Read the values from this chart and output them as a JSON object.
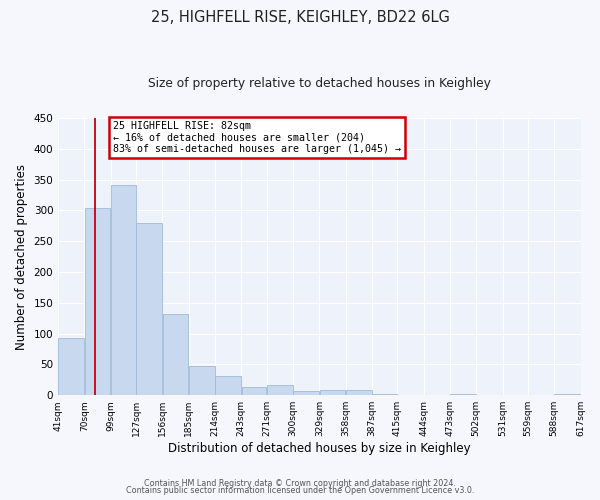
{
  "title": "25, HIGHFELL RISE, KEIGHLEY, BD22 6LG",
  "subtitle": "Size of property relative to detached houses in Keighley",
  "xlabel": "Distribution of detached houses by size in Keighley",
  "ylabel": "Number of detached properties",
  "bar_color": "#c8d9ef",
  "bar_edge_color": "#a0bcd8",
  "background_color": "#eef2fa",
  "grid_color": "#ffffff",
  "bins": [
    41,
    70,
    99,
    127,
    156,
    185,
    214,
    243,
    271,
    300,
    329,
    358,
    387,
    415,
    444,
    473,
    502,
    531,
    559,
    588,
    617
  ],
  "values": [
    93,
    304,
    341,
    279,
    132,
    47,
    31,
    14,
    16,
    7,
    8,
    8,
    2,
    0,
    0,
    2,
    0,
    0,
    0,
    2
  ],
  "tick_labels": [
    "41sqm",
    "70sqm",
    "99sqm",
    "127sqm",
    "156sqm",
    "185sqm",
    "214sqm",
    "243sqm",
    "271sqm",
    "300sqm",
    "329sqm",
    "358sqm",
    "387sqm",
    "415sqm",
    "444sqm",
    "473sqm",
    "502sqm",
    "531sqm",
    "559sqm",
    "588sqm",
    "617sqm"
  ],
  "ylim": [
    0,
    450
  ],
  "yticks": [
    0,
    50,
    100,
    150,
    200,
    250,
    300,
    350,
    400,
    450
  ],
  "vline_x": 82,
  "vline_color": "#cc0000",
  "annotation_title": "25 HIGHFELL RISE: 82sqm",
  "annotation_line1": "← 16% of detached houses are smaller (204)",
  "annotation_line2": "83% of semi-detached houses are larger (1,045) →",
  "annotation_box_color": "#ffffff",
  "annotation_box_edge": "#cc0000",
  "footer1": "Contains HM Land Registry data © Crown copyright and database right 2024.",
  "footer2": "Contains public sector information licensed under the Open Government Licence v3.0.",
  "fig_bg": "#f5f7fd"
}
